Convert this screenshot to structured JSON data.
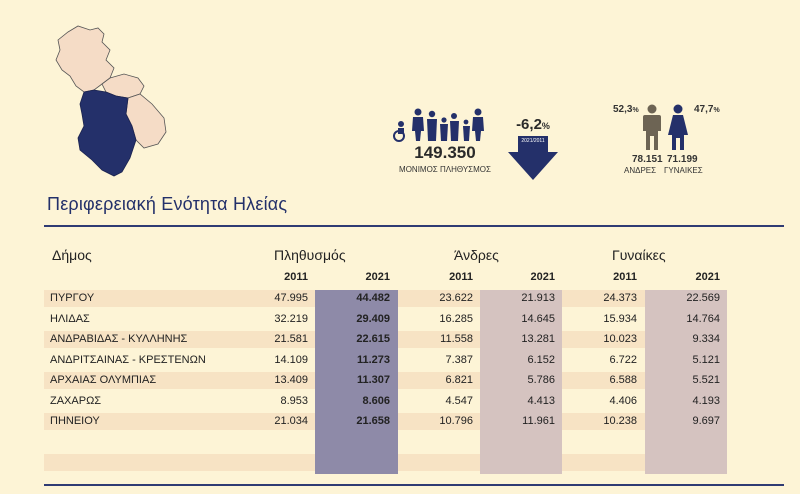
{
  "title": "Περιφερειακή Ενότητα Ηλείας",
  "population": {
    "total": "149.350",
    "caption": "ΜΟΝΙΜΟΣ ΠΛΗΘΥΣΜΟΣ",
    "change_value": "-6,2",
    "change_unit": "%",
    "change_period": "2021/2011"
  },
  "men": {
    "pct": "52,3",
    "pct_unit": "%",
    "count": "78.151",
    "label": "ΑΝΔΡΕΣ"
  },
  "women": {
    "pct": "47,7",
    "pct_unit": "%",
    "count": "71.199",
    "label": "ΓΥΝΑΙΚΕΣ"
  },
  "table": {
    "col_municipality": "Δήμος",
    "group_population": "Πληθυσμός",
    "group_men": "Άνδρες",
    "group_women": "Γυναίκες",
    "years": [
      "2011",
      "2021",
      "2011",
      "2021",
      "2011",
      "2021"
    ],
    "rows": [
      {
        "name": "ΠΥΡΓΟΥ",
        "pop2011": "47.995",
        "pop2021": "44.482",
        "men2011": "23.622",
        "men2021": "21.913",
        "women2011": "24.373",
        "women2021": "22.569"
      },
      {
        "name": "ΗΛΙΔΑΣ",
        "pop2011": "32.219",
        "pop2021": "29.409",
        "men2011": "16.285",
        "men2021": "14.645",
        "women2011": "15.934",
        "women2021": "14.764"
      },
      {
        "name": "ΑΝΔΡΑΒΙΔΑΣ - ΚΥΛΛΗΝΗΣ",
        "pop2011": "21.581",
        "pop2021": "22.615",
        "men2011": "11.558",
        "men2021": "13.281",
        "women2011": "10.023",
        "women2021": "9.334"
      },
      {
        "name": "ΑΝΔΡΙΤΣΑΙΝΑΣ - ΚΡΕΣΤΕΝΩΝ",
        "pop2011": "14.109",
        "pop2021": "11.273",
        "men2011": "7.387",
        "men2021": "6.152",
        "women2011": "6.722",
        "women2021": "5.121"
      },
      {
        "name": "ΑΡΧΑΙΑΣ ΟΛΥΜΠΙΑΣ",
        "pop2011": "13.409",
        "pop2021": "11.307",
        "men2011": "6.821",
        "men2021": "5.786",
        "women2011": "6.588",
        "women2021": "5.521"
      },
      {
        "name": "ΖΑΧΑΡΩΣ",
        "pop2011": "8.953",
        "pop2021": "8.606",
        "men2011": "4.547",
        "men2021": "4.413",
        "women2011": "4.406",
        "women2021": "4.193"
      },
      {
        "name": "ΠΗΝΕΙΟΥ",
        "pop2011": "21.034",
        "pop2021": "21.658",
        "men2011": "10.796",
        "men2021": "11.961",
        "women2011": "10.238",
        "women2021": "9.697"
      }
    ]
  },
  "colors": {
    "background": "#fdf4d6",
    "row_band": "#f7e3c4",
    "pop2021_col": "#8e8aa8",
    "men2021_col": "#d5c3c0",
    "women2021_col": "#d5c3c0",
    "accent": "#23306a",
    "region_fill": "#24306a",
    "map_fill": "#f5dcc6"
  },
  "icons": [
    "map-icon",
    "population-group-icon",
    "down-arrow-icon",
    "man-icon",
    "woman-icon"
  ]
}
